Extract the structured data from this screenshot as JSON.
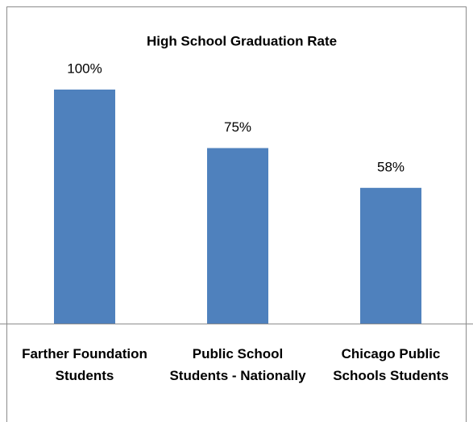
{
  "chart_data": {
    "type": "bar",
    "title": "High School Graduation Rate",
    "categories": [
      "Farther Foundation Students",
      "Public School Students - Nationally",
      "Chicago Public Schools Students"
    ],
    "values": [
      100,
      75,
      58
    ],
    "value_labels": [
      "100%",
      "75%",
      "58%"
    ],
    "color": "#4f81bd",
    "ylim": [
      0,
      120
    ]
  }
}
